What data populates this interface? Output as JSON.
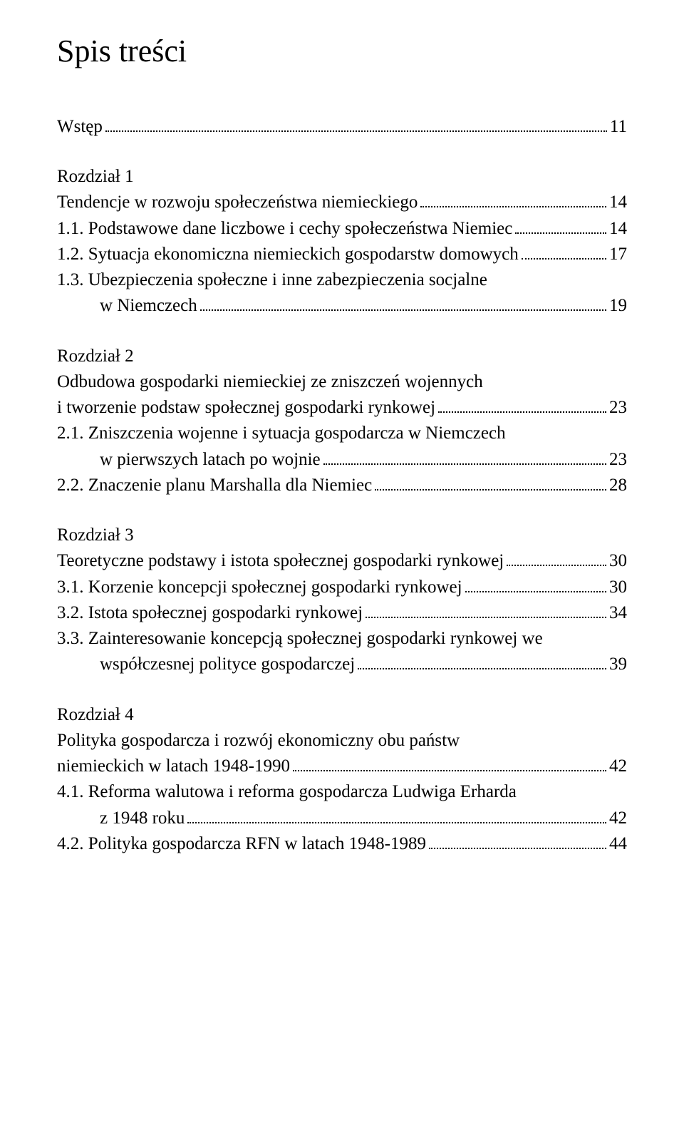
{
  "title": "Spis treści",
  "entries": {
    "wstep": {
      "label": "Wstęp",
      "page": "11"
    },
    "r1_head": "Rozdział 1",
    "r1_title": {
      "label": "Tendencje w rozwoju społeczeństwa niemieckiego",
      "page": "14"
    },
    "r1_1": {
      "label": "1.1. Podstawowe dane liczbowe i cechy społeczeństwa Niemiec",
      "page": "14"
    },
    "r1_2": {
      "label": "1.2. Sytuacja ekonomiczna niemieckich gospodarstw domowych",
      "page": "17"
    },
    "r1_3a": "1.3. Ubezpieczenia społeczne i inne zabezpieczenia socjalne",
    "r1_3b": {
      "label": "w Niemczech",
      "page": "19"
    },
    "r2_head": "Rozdział 2",
    "r2_title_a": "Odbudowa gospodarki niemieckiej ze zniszczeń wojennych",
    "r2_title_b": {
      "label": "i tworzenie podstaw społecznej gospodarki rynkowej",
      "page": "23"
    },
    "r2_1a": "2.1. Zniszczenia wojenne i sytuacja gospodarcza w Niemczech",
    "r2_1b": {
      "label": "w pierwszych latach po wojnie",
      "page": "23"
    },
    "r2_2": {
      "label": "2.2. Znaczenie planu Marshalla dla Niemiec",
      "page": "28"
    },
    "r3_head": "Rozdział 3",
    "r3_title": {
      "label": "Teoretyczne podstawy i istota społecznej gospodarki rynkowej",
      "page": "30"
    },
    "r3_1": {
      "label": "3.1. Korzenie koncepcji społecznej gospodarki rynkowej",
      "page": "30"
    },
    "r3_2": {
      "label": "3.2. Istota społecznej gospodarki rynkowej",
      "page": "34"
    },
    "r3_3a": "3.3. Zainteresowanie koncepcją społecznej gospodarki rynkowej we",
    "r3_3b": {
      "label": "współczesnej polityce gospodarczej",
      "page": "39"
    },
    "r4_head": "Rozdział 4",
    "r4_title_a": "Polityka gospodarcza i rozwój ekonomiczny obu państw",
    "r4_title_b": {
      "label": "niemieckich w latach 1948-1990",
      "page": "42"
    },
    "r4_1a": "4.1. Reforma walutowa i reforma gospodarcza Ludwiga Erharda",
    "r4_1b": {
      "label": "z 1948 roku",
      "page": "42"
    },
    "r4_2": {
      "label": "4.2. Polityka gospodarcza RFN w latach 1948-1989",
      "page": "44"
    }
  }
}
